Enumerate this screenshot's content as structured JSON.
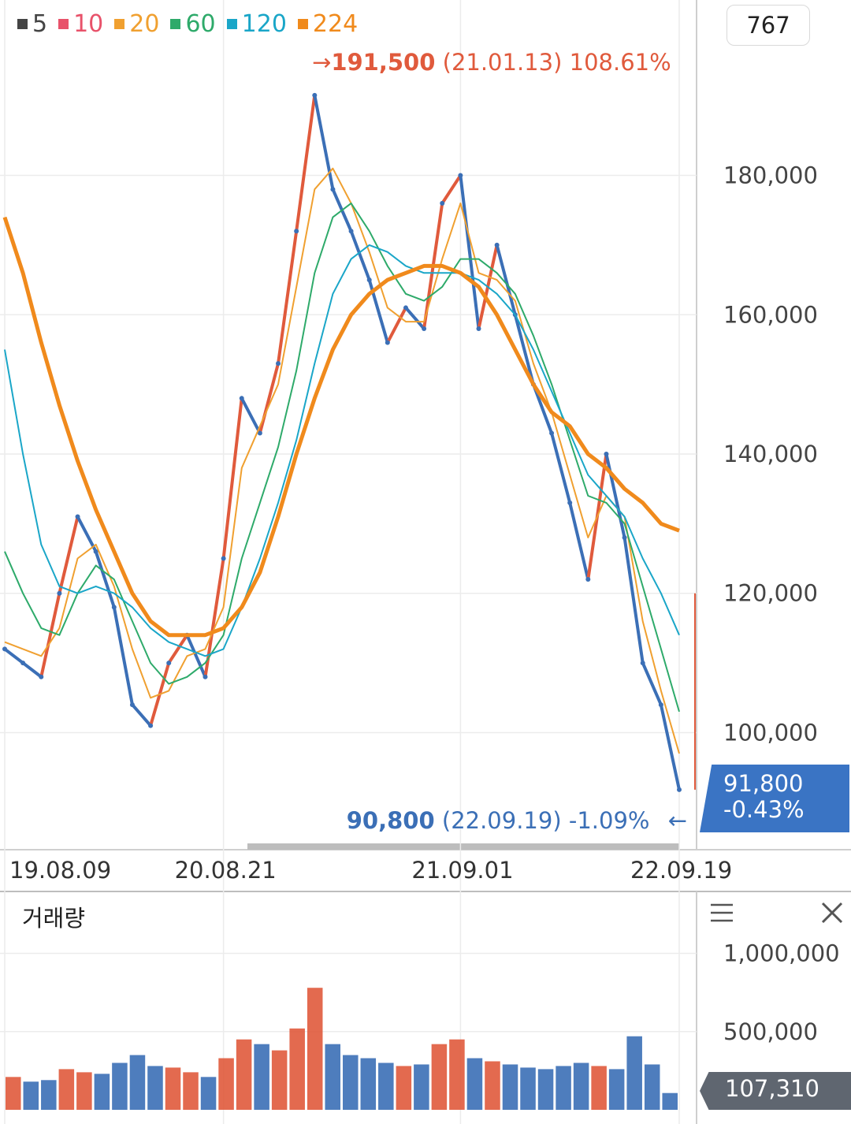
{
  "legend": [
    {
      "label": "5",
      "color": "#444444"
    },
    {
      "label": "10",
      "color": "#e8526a"
    },
    {
      "label": "20",
      "color": "#f0a030"
    },
    {
      "label": "60",
      "color": "#2eaa6a"
    },
    {
      "label": "120",
      "color": "#1aa6c8"
    },
    {
      "label": "224",
      "color": "#f08a1c"
    }
  ],
  "period_value": "767",
  "high_annotation": {
    "arrow": "→",
    "price": "191,500",
    "date": "(21.01.13)",
    "pct": "108.61%"
  },
  "low_annotation": {
    "price": "90,800",
    "date": "(22.09.19)",
    "pct": "-1.09%",
    "arrow": "←"
  },
  "current_price": {
    "price": "91,800",
    "pct": "-0.43%"
  },
  "volume_panel": {
    "title": "거래량",
    "current_volume": "107,310",
    "menu_icon": "hamburger-menu-icon",
    "close_icon": "close-icon"
  },
  "colors": {
    "up": "#e05a3c",
    "down": "#3b6fb6",
    "current_tag": "#3a74c4",
    "volume_tag": "#5f6670"
  },
  "chart_data": {
    "type": "line",
    "title": "",
    "x_tick_labels": [
      "19.08.09",
      "20.08.21",
      "21.09.01",
      "22.09.19"
    ],
    "price_axis": {
      "ticks": [
        100000,
        120000,
        140000,
        160000,
        180000
      ],
      "tick_labels": [
        "100,000",
        "120,000",
        "140,000",
        "160,000",
        "180,000"
      ],
      "range": [
        80000,
        200000
      ]
    },
    "volume_axis": {
      "ticks": [
        500000,
        1000000
      ],
      "tick_labels": [
        "500,000",
        "1,000,000"
      ],
      "range": [
        0,
        1300000
      ]
    },
    "price_series": [
      {
        "date": "19.08.09",
        "value": 112000
      },
      {
        "date": "19.09",
        "value": 110000
      },
      {
        "date": "19.10",
        "value": 108000
      },
      {
        "date": "19.11",
        "value": 120000
      },
      {
        "date": "19.12",
        "value": 131000
      },
      {
        "date": "20.01",
        "value": 126000
      },
      {
        "date": "20.02",
        "value": 118000
      },
      {
        "date": "20.03",
        "value": 104000
      },
      {
        "date": "20.04",
        "value": 101000
      },
      {
        "date": "20.05",
        "value": 110000
      },
      {
        "date": "20.06",
        "value": 114000
      },
      {
        "date": "20.07",
        "value": 108000
      },
      {
        "date": "20.08.21",
        "value": 125000
      },
      {
        "date": "20.09",
        "value": 148000
      },
      {
        "date": "20.10",
        "value": 143000
      },
      {
        "date": "20.11",
        "value": 153000
      },
      {
        "date": "20.12",
        "value": 172000
      },
      {
        "date": "21.01.13",
        "value": 191500
      },
      {
        "date": "21.02",
        "value": 178000
      },
      {
        "date": "21.03",
        "value": 172000
      },
      {
        "date": "21.04",
        "value": 165000
      },
      {
        "date": "21.05",
        "value": 156000
      },
      {
        "date": "21.06",
        "value": 161000
      },
      {
        "date": "21.07",
        "value": 158000
      },
      {
        "date": "21.08",
        "value": 176000
      },
      {
        "date": "21.09.01",
        "value": 180000
      },
      {
        "date": "21.10",
        "value": 158000
      },
      {
        "date": "21.11",
        "value": 170000
      },
      {
        "date": "21.12",
        "value": 160000
      },
      {
        "date": "22.01",
        "value": 150000
      },
      {
        "date": "22.02",
        "value": 143000
      },
      {
        "date": "22.03",
        "value": 133000
      },
      {
        "date": "22.04",
        "value": 122000
      },
      {
        "date": "22.05",
        "value": 140000
      },
      {
        "date": "22.06",
        "value": 128000
      },
      {
        "date": "22.07",
        "value": 110000
      },
      {
        "date": "22.08",
        "value": 104000
      },
      {
        "date": "22.09.19",
        "value": 91800
      }
    ],
    "moving_averages": [
      {
        "name": "20",
        "color": "#f0a030",
        "values": [
          113000,
          112000,
          111000,
          115000,
          125000,
          127000,
          121000,
          112000,
          105000,
          106000,
          111000,
          112000,
          118000,
          138000,
          144000,
          150000,
          164000,
          178000,
          181000,
          176000,
          169000,
          161000,
          159000,
          159000,
          168000,
          176000,
          166000,
          165000,
          162000,
          153000,
          146000,
          137000,
          128000,
          134000,
          131000,
          116000,
          106000,
          97000
        ]
      },
      {
        "name": "60",
        "color": "#2eaa6a",
        "values": [
          126000,
          120000,
          115000,
          114000,
          120000,
          124000,
          122000,
          116000,
          110000,
          107000,
          108000,
          110000,
          114000,
          125000,
          133000,
          141000,
          152000,
          166000,
          174000,
          176000,
          172000,
          167000,
          163000,
          162000,
          164000,
          168000,
          168000,
          166000,
          163000,
          157000,
          150000,
          142000,
          134000,
          133000,
          130000,
          121000,
          112000,
          103000
        ]
      },
      {
        "name": "120",
        "color": "#1aa6c8",
        "values": [
          155000,
          140000,
          127000,
          121000,
          120000,
          121000,
          120000,
          118000,
          115000,
          113000,
          112000,
          111000,
          112000,
          118000,
          125000,
          133000,
          142000,
          153000,
          163000,
          168000,
          170000,
          169000,
          167000,
          166000,
          166000,
          166000,
          165000,
          163000,
          160000,
          155000,
          149000,
          143000,
          137000,
          134000,
          131000,
          125000,
          120000,
          114000
        ]
      },
      {
        "name": "224",
        "color": "#f08a1c",
        "values": [
          174000,
          166000,
          156000,
          147000,
          139000,
          132000,
          126000,
          120000,
          116000,
          114000,
          114000,
          114000,
          115000,
          118000,
          123000,
          131000,
          140000,
          148000,
          155000,
          160000,
          163000,
          165000,
          166000,
          167000,
          167000,
          166000,
          164000,
          160000,
          155000,
          150000,
          146000,
          144000,
          140000,
          138000,
          135000,
          133000,
          130000,
          129000
        ]
      }
    ],
    "volume_series": [
      210000,
      180000,
      190000,
      260000,
      240000,
      230000,
      300000,
      350000,
      280000,
      270000,
      240000,
      210000,
      330000,
      450000,
      420000,
      380000,
      520000,
      780000,
      420000,
      350000,
      330000,
      300000,
      280000,
      290000,
      420000,
      450000,
      330000,
      310000,
      290000,
      270000,
      260000,
      280000,
      300000,
      280000,
      260000,
      470000,
      290000,
      107310
    ],
    "series_names": [
      "5",
      "10",
      "20",
      "60",
      "120",
      "224"
    ]
  }
}
